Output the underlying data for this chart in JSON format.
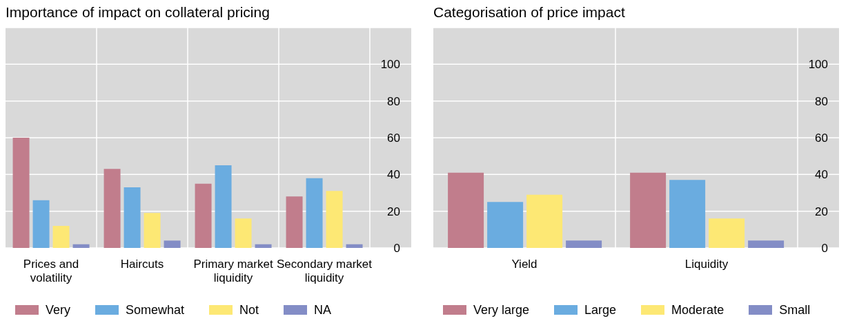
{
  "chart_data": [
    {
      "type": "bar",
      "title": "Importance of impact on collateral pricing",
      "categories": [
        "Prices and volatility",
        "Haircuts",
        "Primary market liquidity",
        "Secondary market liquidity"
      ],
      "series": [
        {
          "name": "Very",
          "color": "#c17d8c",
          "values": [
            60,
            43,
            35,
            28
          ]
        },
        {
          "name": "Somewhat",
          "color": "#6aace0",
          "values": [
            26,
            33,
            45,
            38
          ]
        },
        {
          "name": "Not",
          "color": "#fde874",
          "values": [
            12,
            19,
            16,
            31
          ]
        },
        {
          "name": "NA",
          "color": "#838dc6",
          "values": [
            2,
            4,
            2,
            2
          ]
        }
      ],
      "ylim": [
        0,
        120
      ],
      "yticks": [
        0,
        20,
        40,
        60,
        80,
        100
      ],
      "grid": true,
      "legend": "bottom"
    },
    {
      "type": "bar",
      "title": "Categorisation of price impact",
      "categories": [
        "Yield",
        "Liquidity"
      ],
      "series": [
        {
          "name": "Very large",
          "color": "#c17d8c",
          "values": [
            41,
            41
          ]
        },
        {
          "name": "Large",
          "color": "#6aace0",
          "values": [
            25,
            37
          ]
        },
        {
          "name": "Moderate",
          "color": "#fde874",
          "values": [
            29,
            16
          ]
        },
        {
          "name": "Small",
          "color": "#838dc6",
          "values": [
            4,
            4
          ]
        }
      ],
      "ylim": [
        0,
        120
      ],
      "yticks": [
        0,
        20,
        40,
        60,
        80,
        100
      ],
      "grid": true,
      "legend": "bottom"
    }
  ]
}
